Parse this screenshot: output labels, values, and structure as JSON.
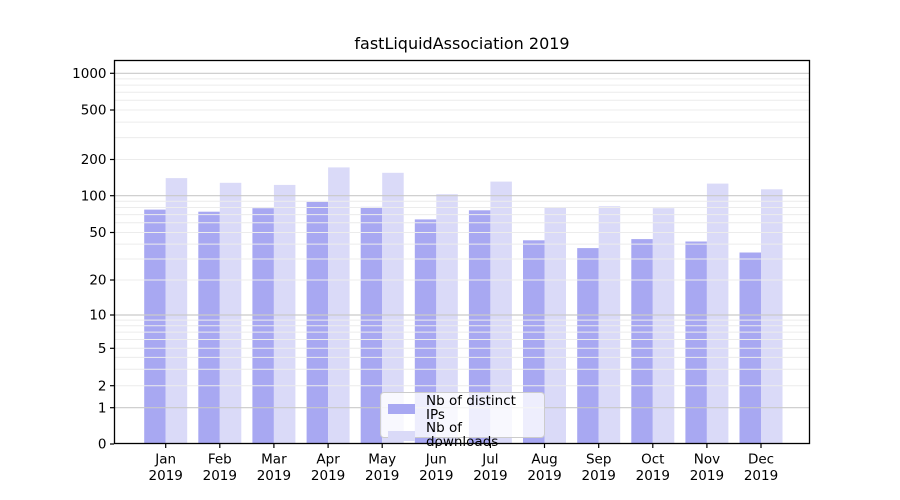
{
  "title": "fastLiquidAssociation 2019",
  "chart_data": {
    "type": "bar",
    "title": "fastLiquidAssociation 2019",
    "categories": [
      "Jan",
      "Feb",
      "Mar",
      "Apr",
      "May",
      "Jun",
      "Jul",
      "Aug",
      "Sep",
      "Oct",
      "Nov",
      "Dec"
    ],
    "x_year_label": "2019",
    "series": [
      {
        "name": "Nb of distinct IPs",
        "color": "#a8a8f2",
        "values": [
          77,
          74,
          79,
          89,
          81,
          64,
          76,
          43,
          37,
          44,
          42,
          34
        ]
      },
      {
        "name": "Nb of downloads",
        "color": "#dadaf8",
        "values": [
          140,
          128,
          123,
          172,
          155,
          103,
          131,
          80,
          82,
          79,
          126,
          113
        ]
      }
    ],
    "y_ticks": [
      0,
      1,
      2,
      5,
      10,
      20,
      50,
      100,
      200,
      500,
      1000
    ],
    "y_scale": "symlog",
    "ylim": [
      0,
      1260
    ],
    "grid": true,
    "legend_position": "lower center",
    "colors": {
      "grid_minor": "#ececec",
      "grid_decade": "#c9c9c9",
      "axis": "#000000"
    }
  }
}
